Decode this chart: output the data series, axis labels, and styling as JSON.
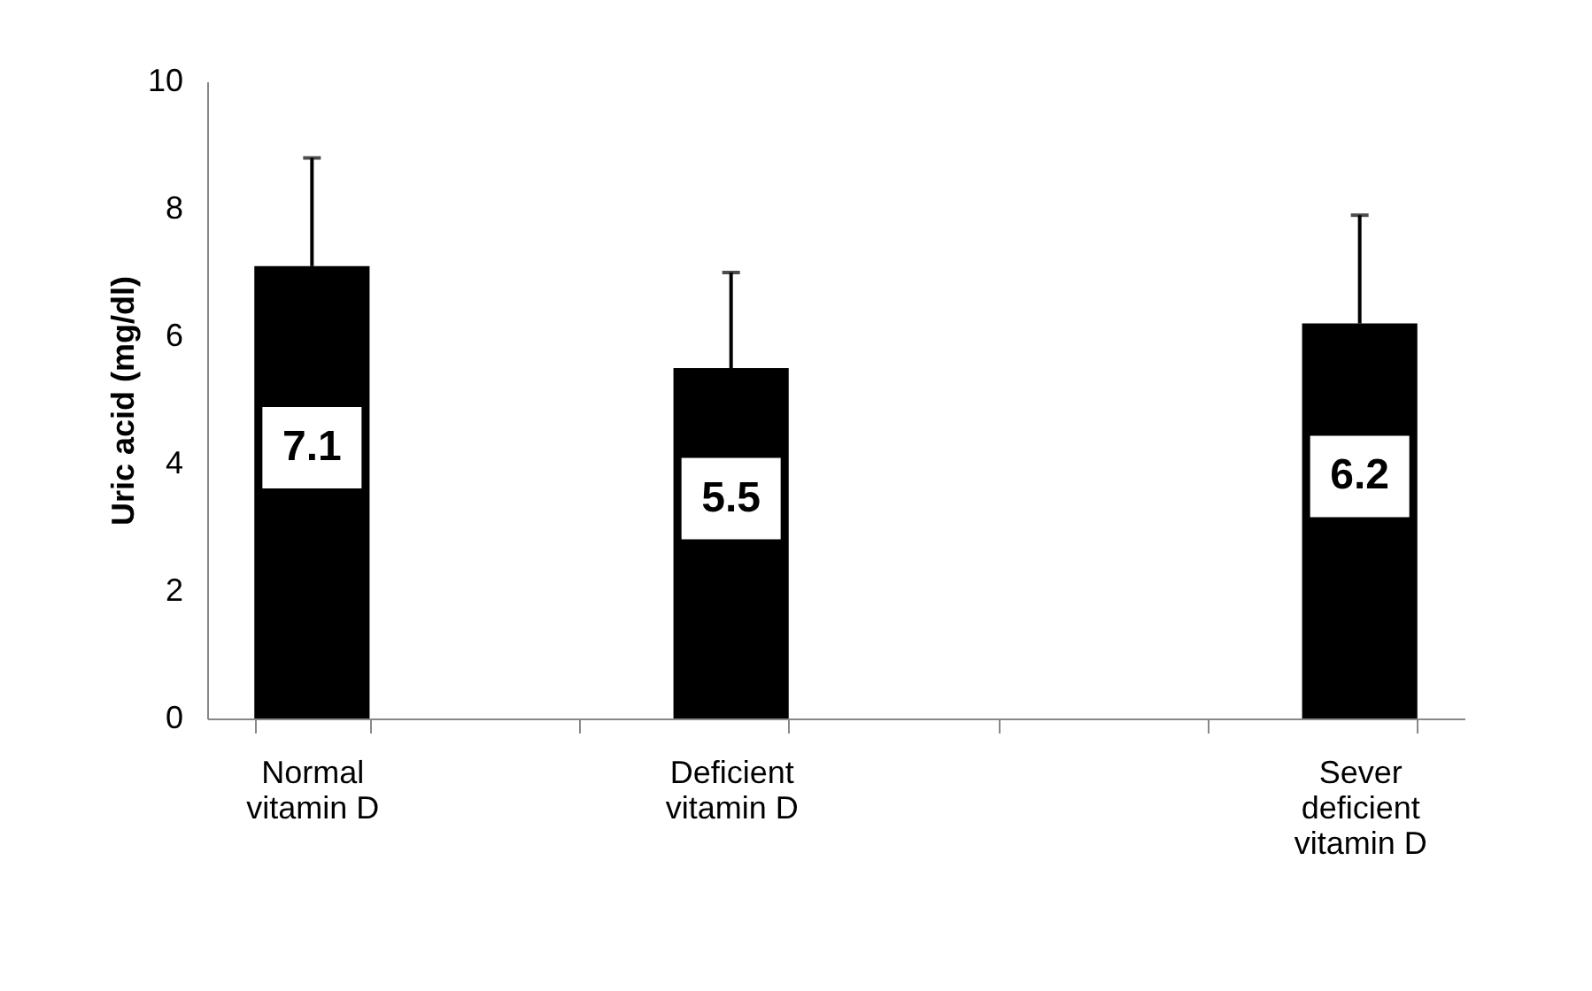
{
  "chart_data": {
    "type": "bar",
    "ylabel": "Uric acid (mg/dl)",
    "categories": [
      "Normal vitamin D",
      null,
      "Deficient vitamin D",
      null,
      null,
      "Sever deficient vitamin D"
    ],
    "values": [
      7.1,
      null,
      5.5,
      null,
      null,
      6.2
    ],
    "errors": [
      [
        7.1,
        8.8
      ],
      null,
      [
        5.5,
        7.0
      ],
      null,
      null,
      [
        6.2,
        7.9
      ]
    ],
    "color": "#000000",
    "ylim": [
      0,
      10
    ],
    "yticks": [
      0,
      2,
      4,
      6,
      8,
      10
    ],
    "data_labels": true,
    "grid": false
  }
}
